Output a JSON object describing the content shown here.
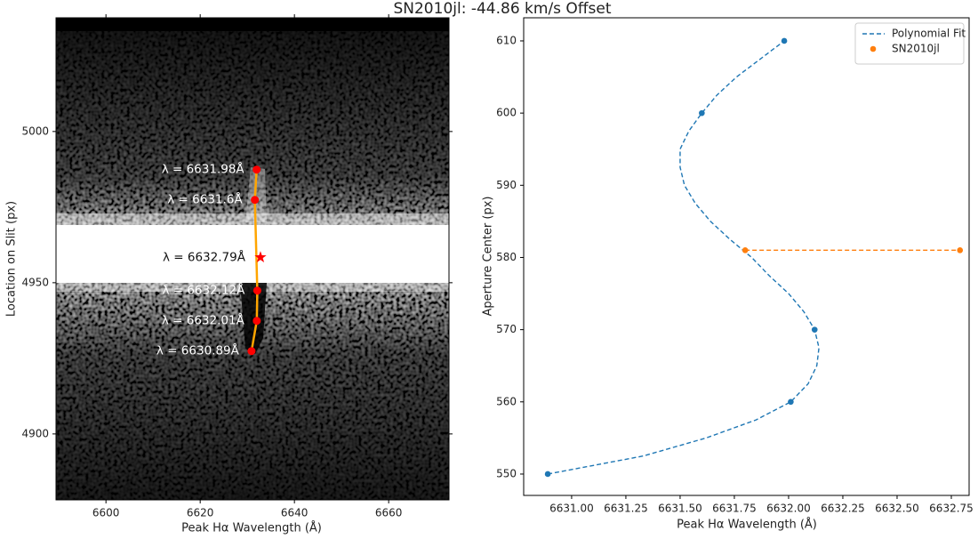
{
  "title": "SN2010jl: -44.86 km/s Offset",
  "chart_data": [
    {
      "type": "image",
      "xlabel": "Peak Hα Wavelength (Å)",
      "ylabel": "Location on Slit (px)",
      "xlim": [
        6589.4,
        6672.8
      ],
      "ylim": [
        4878.2,
        5037.6
      ],
      "xticks": [
        6600,
        6620,
        6640,
        6660
      ],
      "yticks": [
        4900,
        4950,
        5000
      ],
      "points": {
        "color": "#ff0000",
        "x": [
          6631.98,
          6631.6,
          6632.12,
          6632.01,
          6630.89
        ],
        "y": [
          4987.4,
          4977.4,
          4947.4,
          4937.4,
          4927.4
        ],
        "labels": [
          "λ = 6631.98Å",
          "λ = 6631.6Å",
          "λ = 6632.12Å",
          "λ = 6632.01Å",
          "λ = 6630.89Å"
        ]
      },
      "fit_color": "#ffa500",
      "peak": {
        "color": "#ff0000",
        "x": 6632.79,
        "y": 4958.4,
        "label": "λ = 6632.79Å"
      }
    },
    {
      "type": "line",
      "xlabel": "Peak Hα Wavelength (Å)",
      "ylabel": "Aperture Center (px)",
      "xlim": [
        6630.779,
        6632.832
      ],
      "ylim": [
        547.04,
        613.2
      ],
      "xticks": [
        {
          "value": 6631,
          "label": "6631.00"
        },
        {
          "value": 6631.25,
          "label": "6631.25"
        },
        {
          "value": 6631.5,
          "label": "6631.50"
        },
        {
          "value": 6631.75,
          "label": "6631.75"
        },
        {
          "value": 6632,
          "label": "6632.00"
        },
        {
          "value": 6632.25,
          "label": "6632.25"
        },
        {
          "value": 6632.5,
          "label": "6632.50"
        },
        {
          "value": 6632.75,
          "label": "6632.75"
        }
      ],
      "yticks": [
        550,
        560,
        570,
        580,
        590,
        600,
        610
      ],
      "legend": "upper right",
      "series": [
        {
          "name": "Polynomial Fit",
          "color": "#1f77b4",
          "linestyle": "dashed",
          "legend_marker": "line",
          "x": [
            6630.89,
            6631.33,
            6631.62,
            6631.85,
            6632.01,
            6632.09,
            6632.13,
            6632.14,
            6632.12,
            6632.07,
            6632.0,
            6631.91,
            6631.83,
            6631.73,
            6631.64,
            6631.57,
            6631.52,
            6631.5,
            6631.5,
            6631.54,
            6631.6,
            6631.67,
            6631.76,
            6631.87,
            6631.98
          ],
          "y": [
            550,
            552.5,
            555,
            557.5,
            560,
            562.5,
            565,
            567.5,
            570,
            572.5,
            575,
            577.5,
            580,
            582.5,
            585,
            587.5,
            590,
            592.5,
            595,
            597.5,
            600,
            602.5,
            605,
            607.5,
            610
          ]
        },
        {
          "name": "SN2010jl",
          "color": "#ff7f0e",
          "linestyle": "dashed",
          "legend_marker": "dot",
          "markers": true,
          "x": [
            6631.8,
            6632.79
          ],
          "y": [
            581,
            581
          ]
        }
      ],
      "markers": {
        "color": "#1f77b4",
        "x": [
          6630.89,
          6632.01,
          6632.12,
          6631.6,
          6631.98
        ],
        "y": [
          550,
          560,
          570,
          600,
          610
        ]
      }
    }
  ]
}
